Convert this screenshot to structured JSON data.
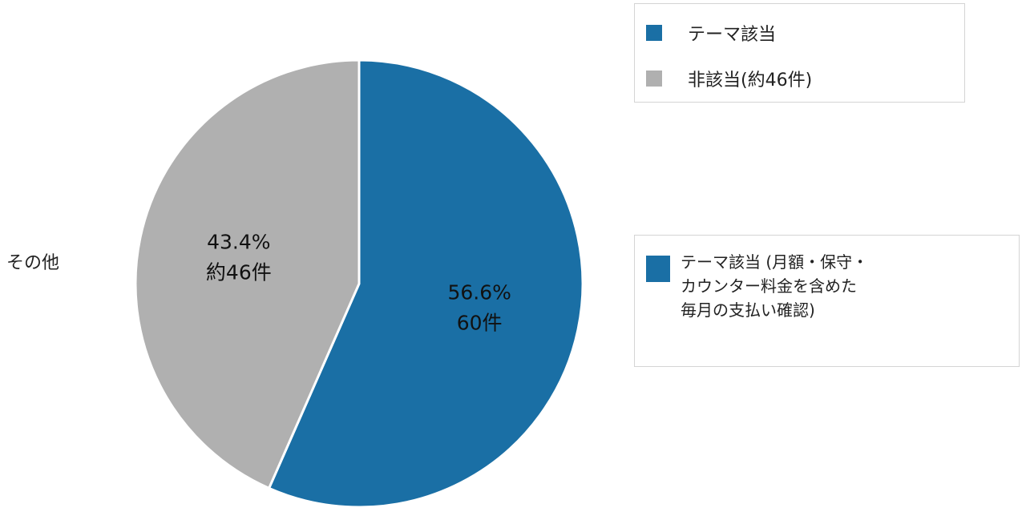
{
  "chart_data": {
    "type": "pie",
    "slices": [
      {
        "label": "テーマ該当",
        "value": 56.6,
        "percent_label": "56.6%",
        "count_label": "60件",
        "color": "#1a6fa5"
      },
      {
        "label": "非該当(約46件)",
        "value": 43.4,
        "percent_label": "43.4%",
        "count_label": "約46件",
        "color": "#b0b0b0"
      }
    ],
    "start_angle": "top, clockwise",
    "outside_label": "その他",
    "legend": {
      "placement": "top-right",
      "items": [
        "テーマ該当",
        "非該当(約46件)"
      ]
    },
    "legend2": {
      "placement": "right",
      "text": "テーマ該当 (月額・保守・\nカウンター料金を含めた\n毎月の支払い確認)",
      "color": "#1a6fa5"
    }
  }
}
